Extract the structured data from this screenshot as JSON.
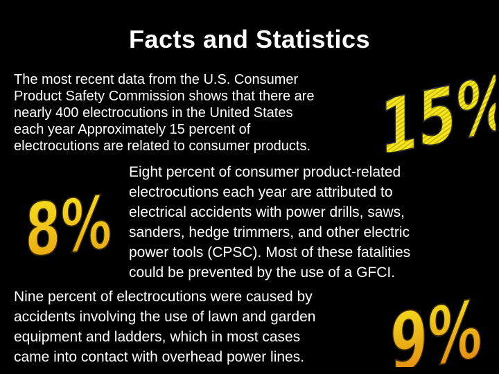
{
  "slide": {
    "title": "Facts and Statistics",
    "paragraph_1": [
      "The most recent data from the U.S. Consumer",
      "Product Safety Commission shows that there are",
      "nearly 400 electrocutions in the United States",
      "each year Approximately 15 percent of",
      "electrocutions are related to consumer products."
    ],
    "paragraph_2": [
      "Eight percent of consumer product-related",
      "electrocutions each year are attributed to",
      "electrical accidents with power drills, saws,",
      "sanders, hedge trimmers, and other electric",
      "power tools (CPSC). Most of these fatalities",
      "could be prevented by the use of a GFCI."
    ],
    "paragraph_3": [
      "Nine percent of electrocutions were caused by",
      "accidents involving the use of lawn and garden",
      "equipment and ladders, which in most cases",
      "came into contact with overhead power lines."
    ],
    "wordart": {
      "fifteen": "15%",
      "eight": "8%",
      "nine": "9%"
    }
  },
  "colors": {
    "background": "#000000",
    "text": "#ffffff",
    "wordart_yellow": "#f5e61e",
    "wordart_orange": "#e07a10",
    "wordart_outline": "#2a2a2a"
  }
}
